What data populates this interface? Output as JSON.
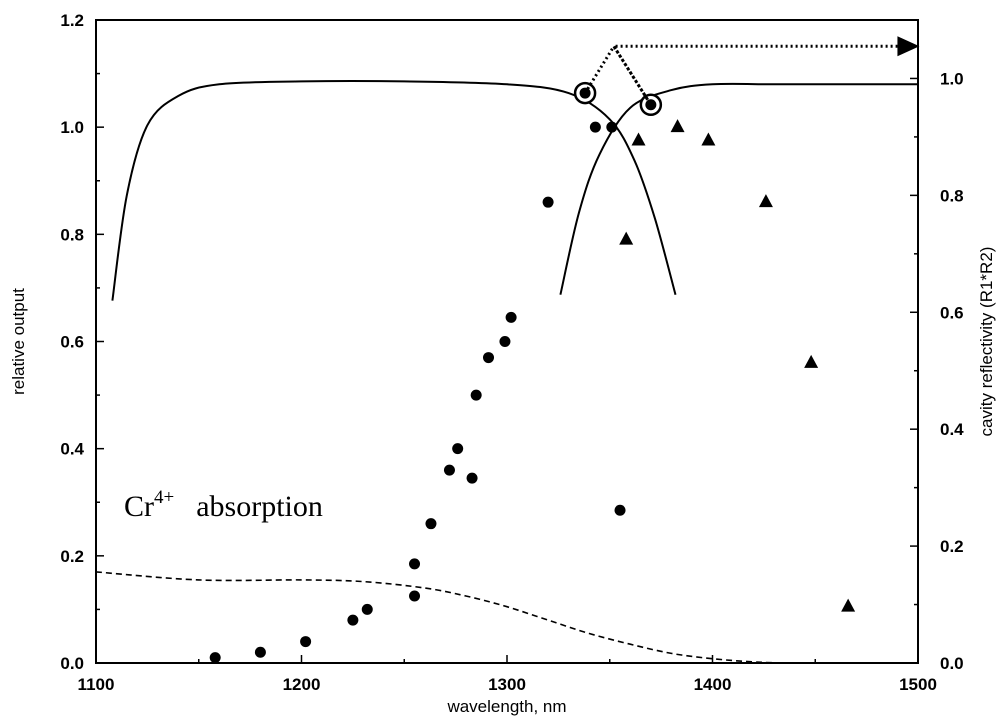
{
  "chart_data": {
    "type": "scatter",
    "xlabel": "wavelength, nm",
    "ylabel": "relative output",
    "y2label": "cavity reflectivity (R1*R2)",
    "xlim": [
      1100,
      1500
    ],
    "ylim": [
      0,
      1.2
    ],
    "y2lim": [
      0,
      1.1
    ],
    "x_ticks": [
      "1100",
      "1200",
      "1300",
      "1400",
      "1500"
    ],
    "y_ticks": [
      "0.0",
      "0.2",
      "0.4",
      "0.6",
      "0.8",
      "1.0",
      "1.2"
    ],
    "y2_ticks": [
      "0.0",
      "0.2",
      "0.4",
      "0.6",
      "0.8",
      "1.0"
    ],
    "annotation": {
      "base": "Cr",
      "superscript": "4+",
      "text": "absorption"
    },
    "series": [
      {
        "marker": "circle",
        "axis": "left",
        "x": [
          1158,
          1180,
          1202,
          1225,
          1232,
          1255,
          1255,
          1263,
          1272,
          1276,
          1283,
          1285,
          1291,
          1299,
          1302,
          1320,
          1343,
          1351,
          1355
        ],
        "y": [
          0.01,
          0.02,
          0.04,
          0.08,
          0.1,
          0.125,
          0.185,
          0.26,
          0.36,
          0.4,
          0.345,
          0.5,
          0.57,
          0.6,
          0.645,
          0.86,
          1.0,
          1.0,
          0.285
        ]
      },
      {
        "marker": "triangle",
        "axis": "left",
        "x": [
          1358,
          1364,
          1383,
          1398,
          1426,
          1448,
          1466
        ],
        "y": [
          0.79,
          0.975,
          1.0,
          0.975,
          0.86,
          0.56,
          0.105
        ]
      },
      {
        "marker": "line-solid",
        "axis": "right",
        "x": [
          1108,
          1115,
          1125,
          1140,
          1160,
          1200,
          1250,
          1300,
          1330,
          1350,
          1362,
          1372,
          1382
        ],
        "y": [
          0.62,
          0.8,
          0.92,
          0.97,
          0.99,
          0.995,
          0.995,
          0.99,
          0.975,
          0.93,
          0.86,
          0.76,
          0.63
        ]
      },
      {
        "marker": "line-solid",
        "axis": "right",
        "x": [
          1326,
          1335,
          1345,
          1360,
          1380,
          1400,
          1430,
          1460,
          1500
        ],
        "y": [
          0.63,
          0.77,
          0.87,
          0.95,
          0.98,
          0.99,
          0.99,
          0.99,
          0.99
        ]
      },
      {
        "marker": "line-dashed",
        "axis": "left",
        "x": [
          1100,
          1150,
          1200,
          1230,
          1260,
          1280,
          1300,
          1320,
          1340,
          1360,
          1380,
          1400,
          1420,
          1440,
          1500
        ],
        "y": [
          0.17,
          0.155,
          0.155,
          0.152,
          0.14,
          0.125,
          0.105,
          0.08,
          0.055,
          0.035,
          0.018,
          0.008,
          0.002,
          0.0,
          0.0
        ]
      },
      {
        "marker": "marker-circle",
        "axis": "right",
        "x": [
          1338,
          1370
        ],
        "y": [
          0.975,
          0.955
        ]
      },
      {
        "marker": "arrow-dotted",
        "axis": "right",
        "x": [
          1338,
          1352,
          1370,
          1352,
          1490
        ],
        "y": [
          0.975,
          1.055,
          0.955,
          1.055,
          1.055
        ]
      }
    ]
  }
}
